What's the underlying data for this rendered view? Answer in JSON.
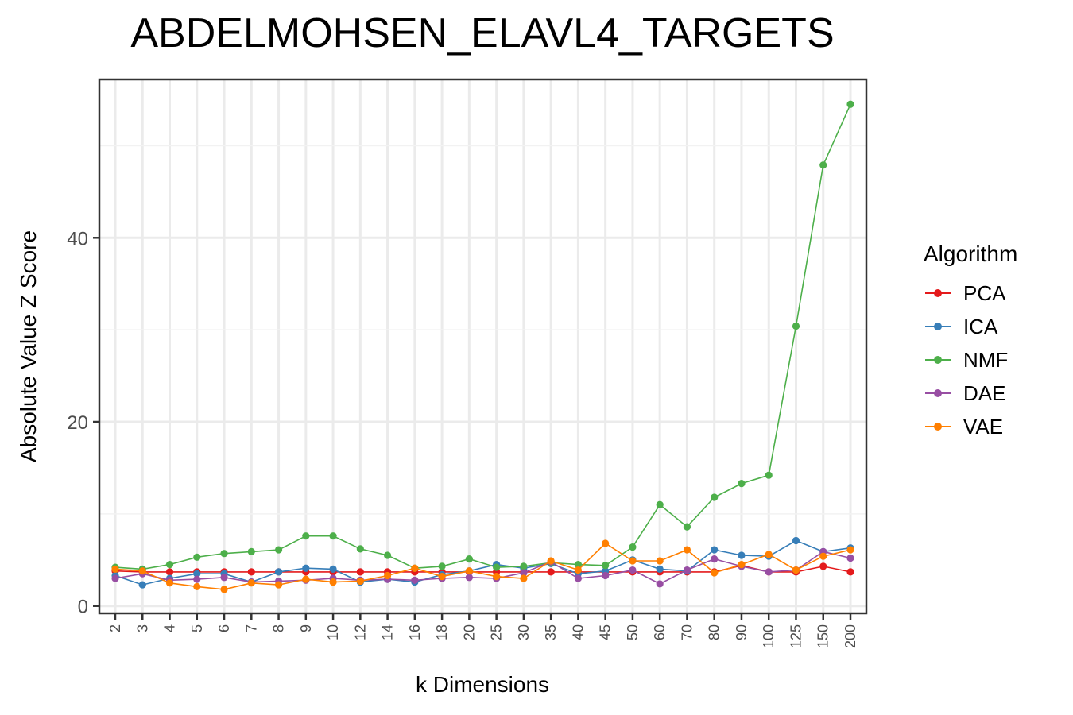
{
  "chart_data": {
    "type": "line",
    "title": "ABDELMOHSEN_ELAVL4_TARGETS",
    "xlabel": "k Dimensions",
    "ylabel": "Absolute Value Z Score",
    "categories": [
      "2",
      "3",
      "4",
      "5",
      "6",
      "7",
      "8",
      "9",
      "10",
      "12",
      "14",
      "16",
      "18",
      "20",
      "25",
      "30",
      "35",
      "40",
      "45",
      "50",
      "60",
      "70",
      "80",
      "90",
      "100",
      "125",
      "150",
      "200"
    ],
    "yticks": [
      0,
      20,
      40
    ],
    "ylim": [
      -0.8,
      57.2
    ],
    "grid": true,
    "legend": {
      "title": "Algorithm",
      "position": "right"
    },
    "series": [
      {
        "name": "PCA",
        "color": "#E41A1C",
        "values": [
          3.8,
          3.7,
          3.7,
          3.7,
          3.7,
          3.7,
          3.7,
          3.7,
          3.7,
          3.7,
          3.7,
          3.7,
          3.7,
          3.7,
          3.7,
          3.7,
          3.7,
          3.7,
          3.7,
          3.7,
          3.7,
          3.7,
          3.7,
          4.4,
          3.7,
          3.7,
          4.3,
          3.7
        ]
      },
      {
        "name": "ICA",
        "color": "#377EB8",
        "values": [
          3.3,
          2.3,
          3.0,
          3.5,
          3.5,
          2.6,
          3.7,
          4.1,
          4.0,
          2.6,
          2.9,
          2.6,
          3.4,
          3.8,
          4.5,
          4.1,
          4.6,
          3.5,
          3.8,
          5.0,
          4.0,
          3.8,
          6.1,
          5.5,
          5.4,
          7.1,
          5.9,
          6.3
        ]
      },
      {
        "name": "NMF",
        "color": "#4DAF4A",
        "values": [
          4.2,
          4.0,
          4.5,
          5.3,
          5.7,
          5.9,
          6.1,
          7.6,
          7.6,
          6.2,
          5.5,
          4.1,
          4.3,
          5.1,
          4.2,
          4.3,
          4.7,
          4.5,
          4.4,
          6.4,
          11.0,
          8.6,
          11.8,
          13.3,
          14.2,
          30.4,
          47.9,
          54.5
        ]
      },
      {
        "name": "DAE",
        "color": "#984EA3",
        "values": [
          3.0,
          3.5,
          2.8,
          2.9,
          3.1,
          2.6,
          2.7,
          2.8,
          3.0,
          2.8,
          2.9,
          2.8,
          3.0,
          3.1,
          3.0,
          3.6,
          4.8,
          3.0,
          3.3,
          3.9,
          2.4,
          3.9,
          5.1,
          4.3,
          3.7,
          3.9,
          5.9,
          5.2
        ]
      },
      {
        "name": "VAE",
        "color": "#FF7F00",
        "values": [
          4.0,
          3.8,
          2.5,
          2.1,
          1.8,
          2.5,
          2.3,
          2.9,
          2.6,
          2.7,
          3.3,
          4.1,
          3.2,
          3.8,
          3.2,
          3.0,
          4.9,
          3.9,
          6.8,
          4.9,
          4.9,
          6.1,
          3.6,
          4.5,
          5.6,
          3.9,
          5.4,
          6.1
        ]
      }
    ]
  }
}
